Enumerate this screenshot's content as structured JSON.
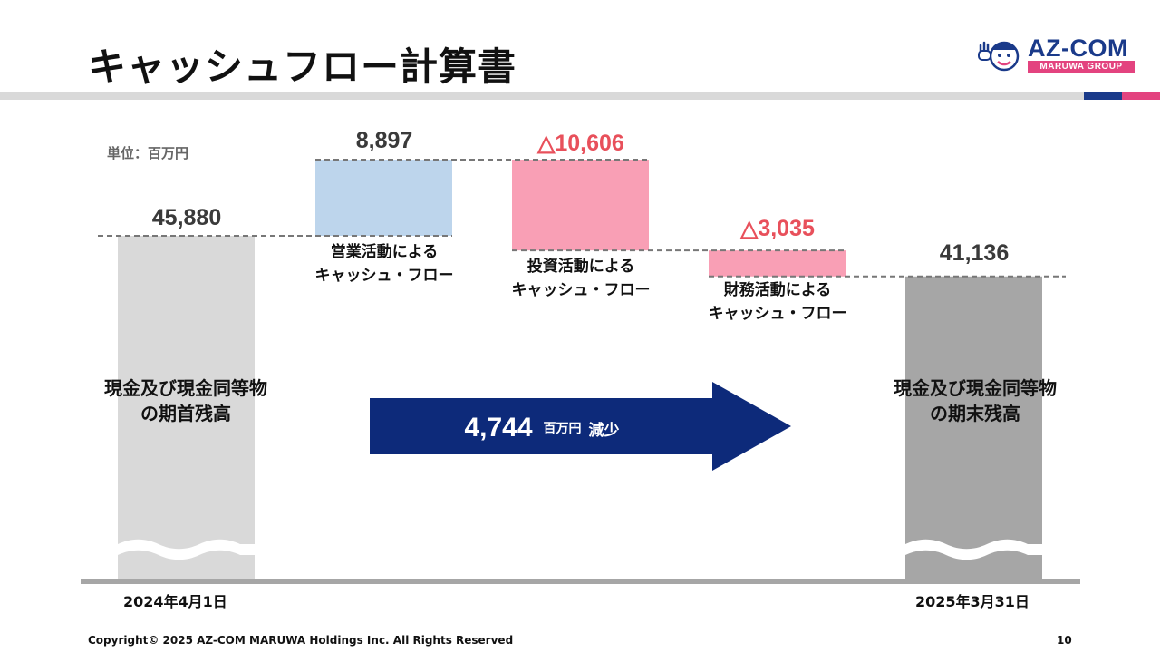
{
  "title": "キャッシュフロー計算書",
  "logo": {
    "text": "AZ-COM",
    "sub": "MARUWA GROUP"
  },
  "colors": {
    "opening_bar": "#d9d9d9",
    "closing_bar": "#a6a6a6",
    "inflow_bar": "#bdd5ec",
    "outflow_bar": "#f99fb5",
    "arrow": "#0d2a7a",
    "negative_text": "#e8505b"
  },
  "chart_data": {
    "type": "bar",
    "subtype": "waterfall",
    "unit": "単位：百万円",
    "categories": [
      "現金及び現金同等物の期首残高",
      "営業活動によるキャッシュ・フロー",
      "投資活動によるキャッシュ・フロー",
      "財務活動によるキャッシュ・フロー",
      "現金及び現金同等物の期末残高"
    ],
    "values": [
      45880,
      8897,
      -10606,
      -3035,
      41136
    ],
    "value_labels": [
      "45,880",
      "8,897",
      "△10,606",
      "△3,035",
      "41,136"
    ],
    "dates": {
      "start": "2024年4月1日",
      "end": "2025年3月31日"
    },
    "summary": {
      "value": "4,744",
      "unit": "百万円",
      "word": "減少"
    }
  },
  "labels": {
    "opening": [
      "現金及び現金同等物",
      "の期首残高"
    ],
    "operating": [
      "営業活動による",
      "キャッシュ・フロー"
    ],
    "investing": [
      "投資活動による",
      "キャッシュ・フロー"
    ],
    "financing": [
      "財務活動による",
      "キャッシュ・フロー"
    ],
    "closing": [
      "現金及び現金同等物",
      "の期末残高"
    ]
  },
  "footer": "Copyright© 2025 AZ-COM MARUWA Holdings Inc. All Rights Reserved",
  "page_number": "10"
}
